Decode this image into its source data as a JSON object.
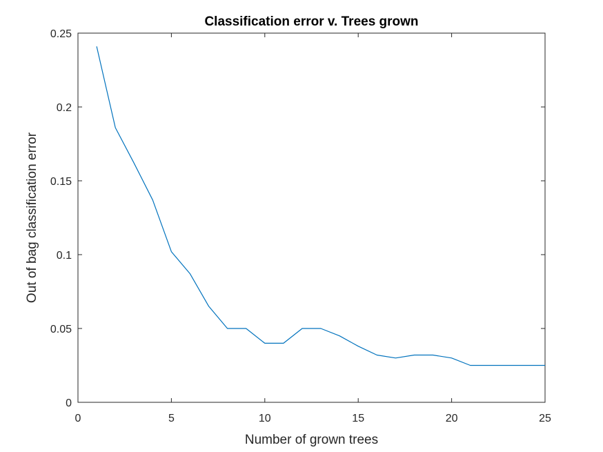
{
  "chart_data": {
    "type": "line",
    "title": "Classification error v. Trees grown",
    "xlabel": "Number of grown trees",
    "ylabel": "Out of bag classification error",
    "xlim": [
      0,
      25
    ],
    "ylim": [
      0,
      0.25
    ],
    "xticks": [
      0,
      5,
      10,
      15,
      20,
      25
    ],
    "xtick_labels": [
      "0",
      "5",
      "10",
      "15",
      "20",
      "25"
    ],
    "yticks": [
      0,
      0.05,
      0.1,
      0.15,
      0.2,
      0.25
    ],
    "ytick_labels": [
      "0",
      "0.05",
      "0.1",
      "0.15",
      "0.2",
      "0.25"
    ],
    "grid": false,
    "series": [
      {
        "color": "#0072bd",
        "x": [
          1,
          2,
          3,
          4,
          5,
          6,
          7,
          8,
          9,
          10,
          11,
          12,
          13,
          14,
          15,
          16,
          17,
          18,
          19,
          20,
          21,
          22,
          23,
          24,
          25
        ],
        "y": [
          0.241,
          0.186,
          0.162,
          0.137,
          0.102,
          0.087,
          0.065,
          0.05,
          0.05,
          0.04,
          0.04,
          0.05,
          0.05,
          0.045,
          0.038,
          0.032,
          0.03,
          0.032,
          0.032,
          0.03,
          0.025,
          0.025,
          0.025,
          0.025,
          0.025
        ]
      }
    ]
  }
}
